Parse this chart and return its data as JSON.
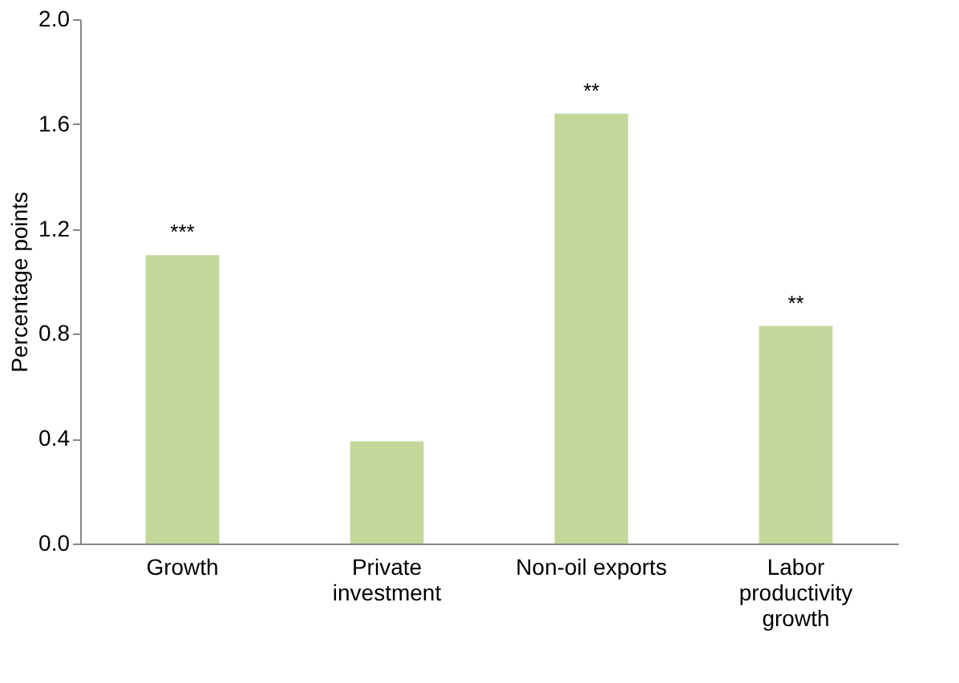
{
  "chart_data": {
    "type": "bar",
    "ylabel": "Percentage points",
    "categories": [
      "Growth",
      "Private investment",
      "Non-oil exports",
      "Labor productivity growth"
    ],
    "values": [
      1.1,
      0.39,
      1.64,
      0.83
    ],
    "color": "#c4d79b",
    "ylim": [
      0,
      2.0
    ],
    "yticks": [
      {
        "value": 0,
        "label": "0.0"
      },
      {
        "value": 0.4,
        "label": "0.4"
      },
      {
        "value": 0.8,
        "label": "0.8"
      },
      {
        "value": 1.2,
        "label": "1.2"
      },
      {
        "value": 1.6,
        "label": "1.6"
      },
      {
        "value": 2.0,
        "label": "2.0"
      }
    ],
    "grid": false,
    "annotations": [
      {
        "text": "***",
        "x": "Growth",
        "y": 1.1
      },
      {
        "text": "**",
        "x": "Non-oil exports",
        "y": 1.64
      },
      {
        "text": "**",
        "x": "Labor productivity growth",
        "y": 0.83
      }
    ]
  }
}
